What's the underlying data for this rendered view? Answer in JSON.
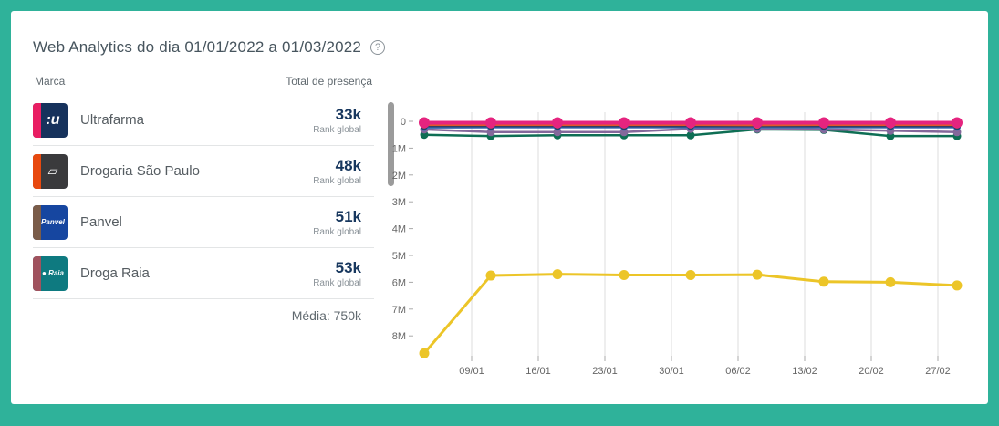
{
  "card": {
    "title": "Web Analytics do dia 01/01/2022 a 01/03/2022",
    "help_icon": "?"
  },
  "brand_list": {
    "col_brand": "Marca",
    "col_total": "Total de presença",
    "rank_label": "Rank global",
    "media_text": "Média: 750k",
    "items": [
      {
        "name": "Ultrafarma",
        "total": "33k",
        "logo": {
          "accent": "#e91e63",
          "bg": "#16325c",
          "glyph": ":u",
          "glyph_size": "16px"
        }
      },
      {
        "name": "Drogaria São Paulo",
        "total": "48k",
        "logo": {
          "accent": "#e8490f",
          "bg": "#3a3a3c",
          "glyph": "▱",
          "glyph_size": "14px"
        }
      },
      {
        "name": "Panvel",
        "total": "51k",
        "logo": {
          "accent": "#7a5c49",
          "bg": "#1646a0",
          "glyph": "Panvel",
          "glyph_size": "8px"
        }
      },
      {
        "name": "Droga Raia",
        "total": "53k",
        "logo": {
          "accent": "#a0525e",
          "bg": "#0e7a80",
          "glyph": "● Raia",
          "glyph_size": "8px"
        }
      }
    ]
  },
  "chart_data": {
    "type": "line",
    "title": "",
    "xlabel": "",
    "ylabel": "",
    "y_axis_inverted": true,
    "values_unit": "millions (web rank)",
    "ylim": [
      0,
      8.8
    ],
    "grid": "vertical-only",
    "legend_position": "none",
    "x_tick_labels": [
      "09/01",
      "16/01",
      "23/01",
      "30/01",
      "06/02",
      "13/02",
      "20/02",
      "27/02"
    ],
    "y_tick_labels": [
      "0",
      "1M",
      "2M",
      "3M",
      "4M",
      "5M",
      "6M",
      "7M",
      "8M"
    ],
    "num_points": 9,
    "series": [
      {
        "name": "green-line",
        "color": "#0e6e54",
        "width": 2.5,
        "marker": 4.5,
        "values": [
          0.5,
          0.55,
          0.52,
          0.52,
          0.52,
          0.3,
          0.32,
          0.55,
          0.55
        ]
      },
      {
        "name": "purple-line",
        "color": "#84689b",
        "width": 2.5,
        "marker": 4.5,
        "values": [
          0.3,
          0.4,
          0.4,
          0.4,
          0.28,
          0.28,
          0.3,
          0.35,
          0.4
        ]
      },
      {
        "name": "blue-line",
        "color": "#4472b8",
        "width": 2.5,
        "marker": 4,
        "values": [
          0.23,
          0.22,
          0.22,
          0.22,
          0.22,
          0.22,
          0.22,
          0.22,
          0.22
        ]
      },
      {
        "name": "navy-line",
        "color": "#1e3d6b",
        "width": 2.5,
        "marker": 4,
        "values": [
          0.18,
          0.18,
          0.18,
          0.18,
          0.18,
          0.18,
          0.18,
          0.18,
          0.18
        ]
      },
      {
        "name": "orange-line",
        "color": "#e2572b",
        "width": 2.5,
        "marker": 4,
        "values": [
          0.13,
          0.13,
          0.13,
          0.13,
          0.13,
          0.14,
          0.13,
          0.13,
          0.13
        ]
      },
      {
        "name": "yellow-line",
        "color": "#ecc528",
        "width": 3,
        "marker": 5.5,
        "values": [
          8.65,
          5.75,
          5.7,
          5.73,
          5.73,
          5.72,
          5.98,
          6.0,
          6.12
        ]
      },
      {
        "name": "pink-line",
        "color": "#e5247f",
        "width": 4,
        "marker": 6,
        "values": [
          0.05,
          0.05,
          0.05,
          0.05,
          0.05,
          0.05,
          0.05,
          0.05,
          0.05
        ]
      }
    ]
  },
  "colors": {
    "frame": "#2fb29a",
    "value_navy": "#17375e",
    "grid": "#dddddd",
    "axis_text": "#666666"
  }
}
